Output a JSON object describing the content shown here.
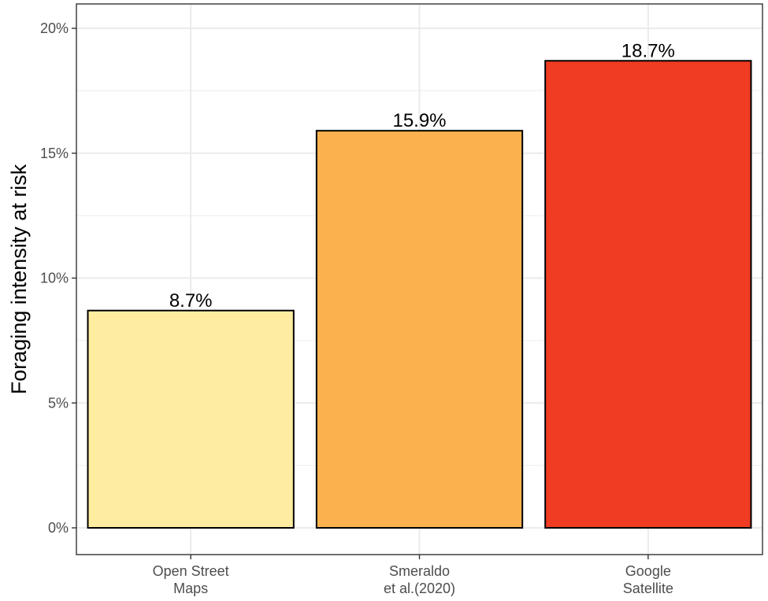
{
  "chart_data": {
    "type": "bar",
    "title": "",
    "xlabel": "",
    "ylabel": "Foraging intensity at risk",
    "categories": [
      [
        "Open Street",
        "Maps"
      ],
      [
        "Smeraldo",
        "et al.(2020)"
      ],
      [
        "Google",
        "Satellite"
      ]
    ],
    "values": [
      8.7,
      15.9,
      18.7
    ],
    "value_labels": [
      "8.7%",
      "15.9%",
      "18.7%"
    ],
    "bar_colors": [
      "#FEEDA0",
      "#FBB24E",
      "#F03C22"
    ],
    "ylim": [
      0,
      20
    ],
    "y_ticks": [
      0,
      5,
      10,
      15,
      20
    ],
    "y_tick_labels": [
      "0%",
      "5%",
      "10%",
      "15%",
      "20%"
    ],
    "grid": true,
    "legend": "none"
  }
}
